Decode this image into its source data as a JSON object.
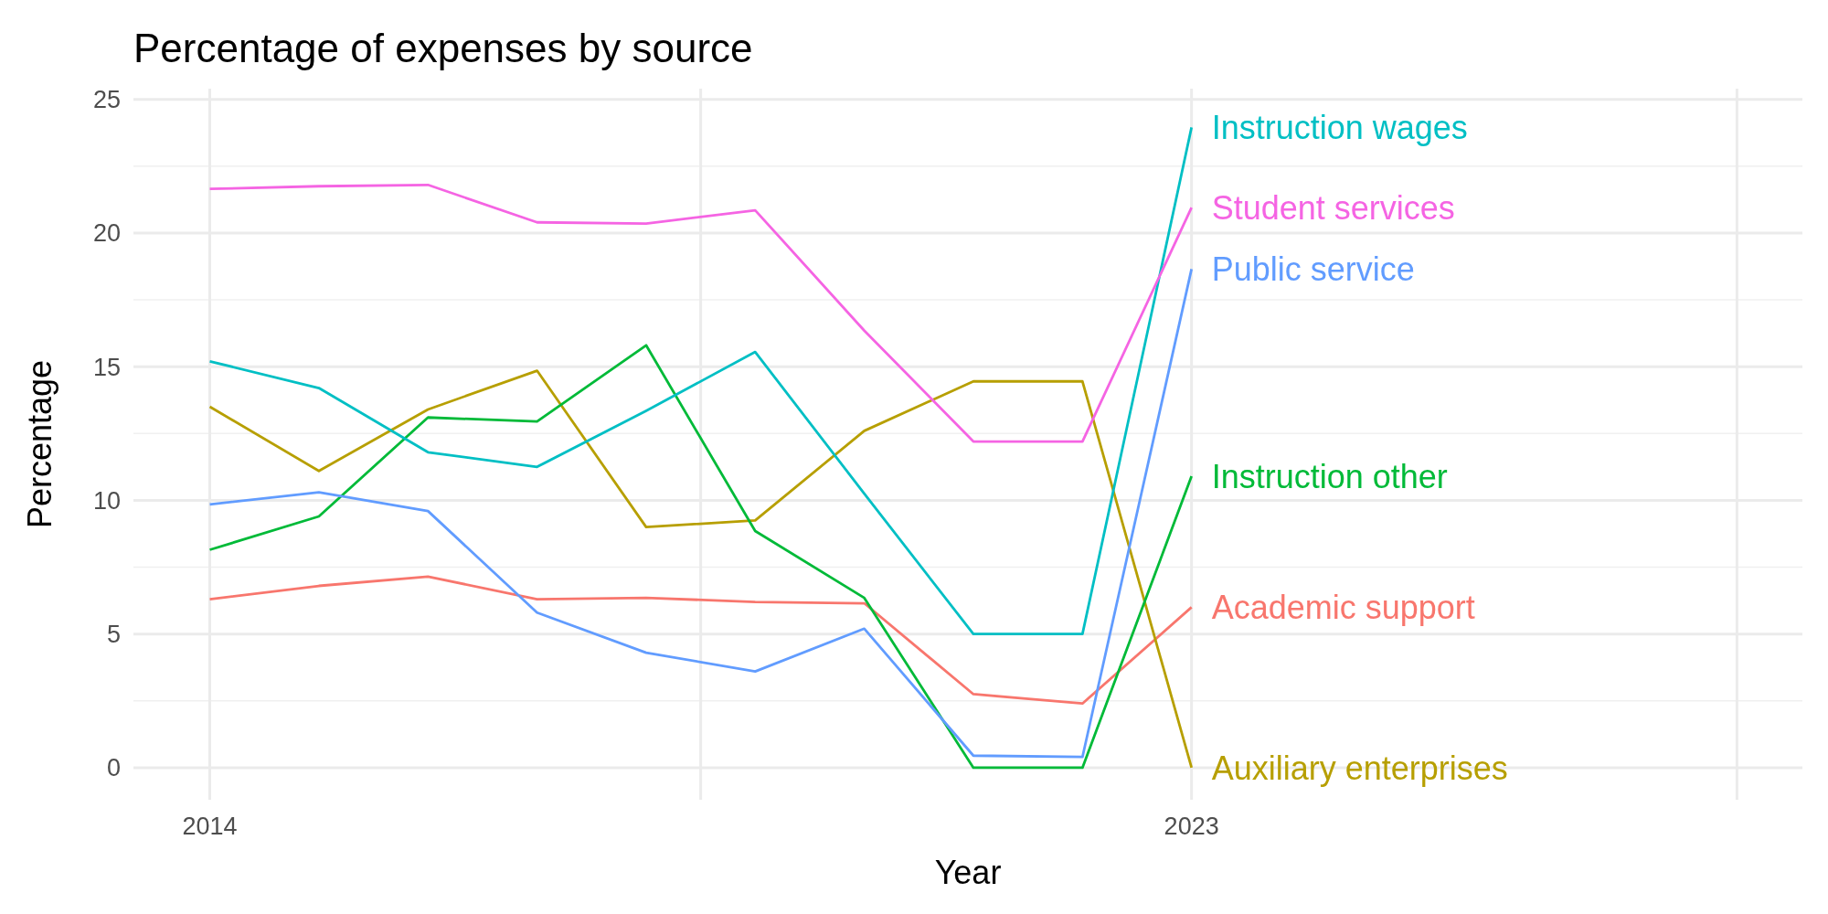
{
  "chart_data": {
    "type": "line",
    "title": "Percentage of expenses by source",
    "xlabel": "Year",
    "ylabel": "Percentage",
    "x": [
      2014,
      2015,
      2016,
      2017,
      2018,
      2019,
      2020,
      2021,
      2022,
      2023
    ],
    "xlim": [
      2013.3,
      2028.6
    ],
    "xticks": [
      2014,
      {
        "value": 2018.5,
        "label": null
      },
      2023,
      {
        "value": 2028,
        "label": null
      }
    ],
    "ylim": [
      -1.2,
      25.4
    ],
    "yticks": [
      0,
      5,
      10,
      15,
      20,
      25
    ],
    "grid": true,
    "series": [
      {
        "name": "Academic support",
        "color": "#f8766d",
        "values": [
          6.3,
          6.8,
          7.15,
          6.3,
          6.35,
          6.2,
          6.15,
          2.75,
          2.4,
          6.0
        ]
      },
      {
        "name": "Auxiliary enterprises",
        "color": "#b79f00",
        "values": [
          13.5,
          11.1,
          13.4,
          14.85,
          9.0,
          9.25,
          12.6,
          14.45,
          14.45,
          0
        ]
      },
      {
        "name": "Instruction other",
        "color": "#00ba38",
        "values": [
          8.15,
          9.4,
          13.1,
          12.95,
          15.8,
          8.85,
          6.35,
          0,
          0,
          10.9
        ]
      },
      {
        "name": "Instruction wages",
        "color": "#00bfc4",
        "values": [
          15.2,
          14.2,
          11.8,
          11.25,
          13.35,
          15.55,
          10.25,
          5.0,
          5.0,
          23.95
        ]
      },
      {
        "name": "Public service",
        "color": "#619cff",
        "values": [
          9.85,
          10.3,
          9.6,
          5.8,
          4.3,
          3.6,
          5.2,
          0.45,
          0.4,
          18.65
        ]
      },
      {
        "name": "Student services",
        "color": "#f564e3",
        "values": [
          21.65,
          21.75,
          21.8,
          20.4,
          20.35,
          20.85,
          16.35,
          12.2,
          12.2,
          20.95
        ]
      }
    ]
  }
}
